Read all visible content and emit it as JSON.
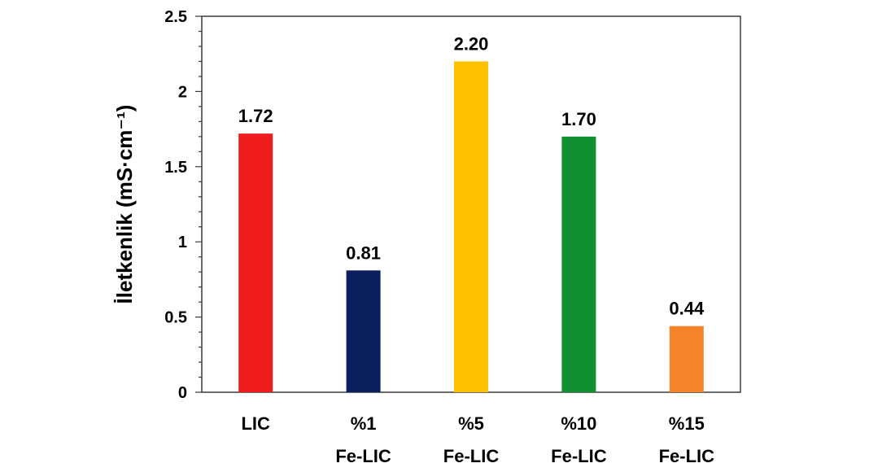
{
  "chart_data": {
    "type": "bar",
    "categories": [
      [
        "LIC"
      ],
      [
        "%1",
        "Fe-LIC"
      ],
      [
        "%5",
        "Fe-LIC"
      ],
      [
        "%10",
        "Fe-LIC"
      ],
      [
        "%15",
        "Fe-LIC"
      ]
    ],
    "values": [
      1.72,
      0.81,
      2.2,
      1.7,
      0.44
    ],
    "data_labels": [
      "1.72",
      "0.81",
      "2.20",
      "1.70",
      "0.44"
    ],
    "colors": [
      "#ee1c1c",
      "#0a1f5c",
      "#ffc000",
      "#109030",
      "#f5842a"
    ],
    "ylabel": "İletkenlik (mS·cm⁻¹)",
    "xlabel": "",
    "title": "",
    "ylim": [
      0,
      2.5
    ],
    "yticks": [
      0,
      0.5,
      1,
      1.5,
      2,
      2.5
    ],
    "ytick_labels": [
      "0",
      "0.5",
      "1",
      "1.5",
      "2",
      "2.5"
    ],
    "grid": false,
    "legend": "none"
  }
}
